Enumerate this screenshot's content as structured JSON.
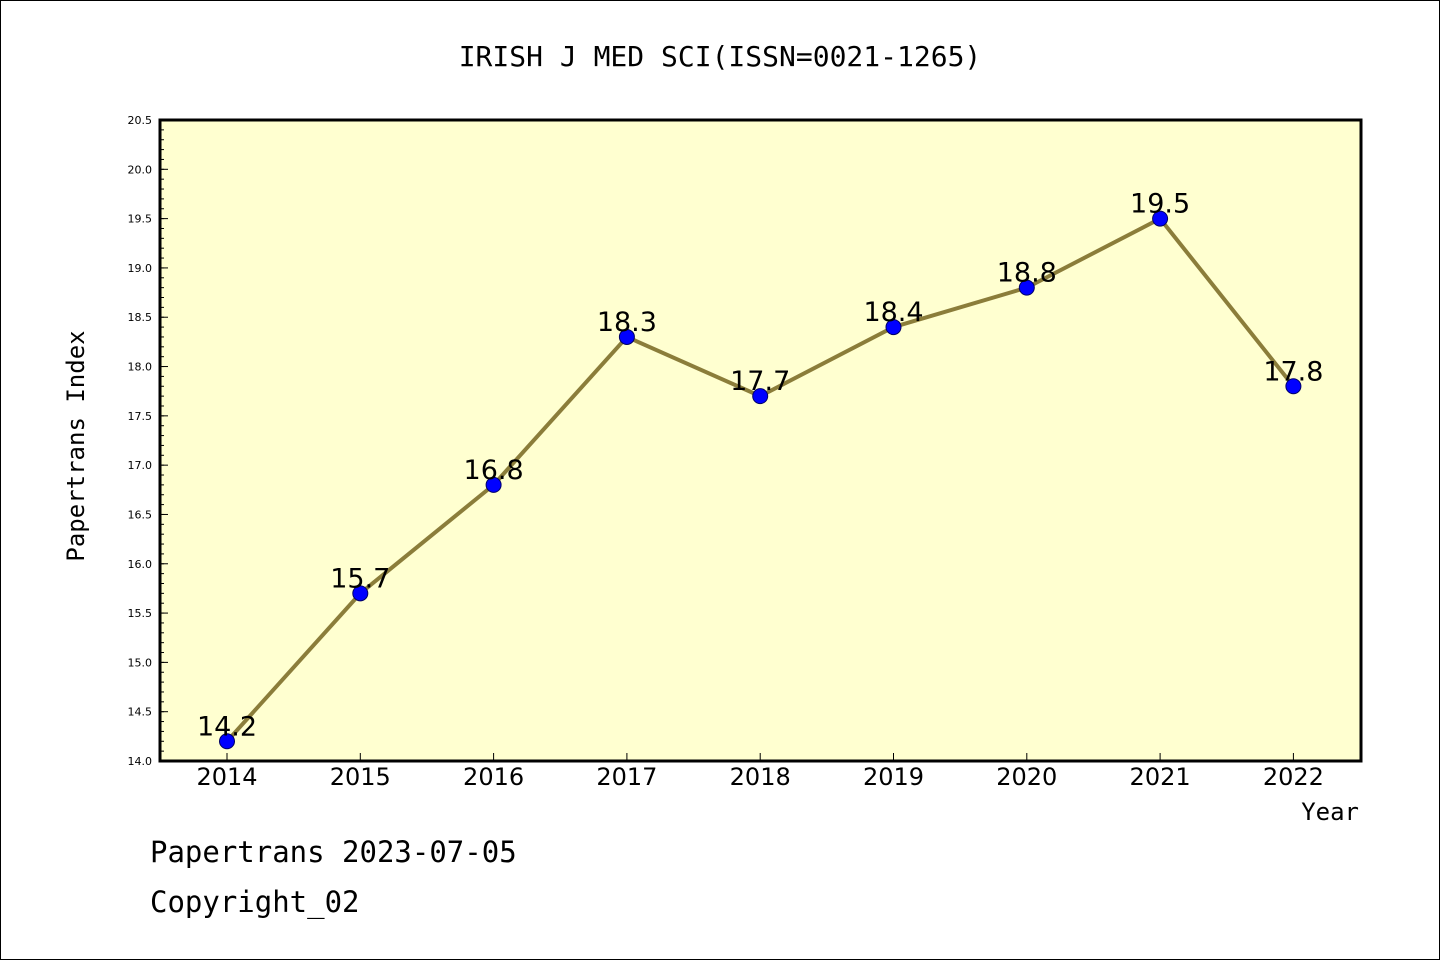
{
  "chart_data": {
    "type": "line",
    "title": "IRISH J MED SCI(ISSN=0021-1265)",
    "xlabel": "Year",
    "ylabel": "Papertrans Index",
    "categories": [
      "2014",
      "2015",
      "2016",
      "2017",
      "2018",
      "2019",
      "2020",
      "2021",
      "2022"
    ],
    "values": [
      14.2,
      15.7,
      16.8,
      18.3,
      17.7,
      18.4,
      18.8,
      19.5,
      17.8
    ],
    "value_labels": [
      "14.2",
      "15.7",
      "16.8",
      "18.3",
      "17.7",
      "18.4",
      "18.8",
      "19.5",
      "17.8"
    ],
    "ylim": [
      14.0,
      20.5
    ],
    "yticks": [
      "14.0",
      "14.5",
      "15.0",
      "15.5",
      "16.0",
      "16.5",
      "17.0",
      "17.5",
      "18.0",
      "18.5",
      "19.0",
      "19.5",
      "20.0",
      "20.5"
    ],
    "grid": false,
    "line_color": "#8b7d3a",
    "marker_color": "#0000ff",
    "plot_background": "#ffffd0"
  },
  "footer": {
    "date_line": "Papertrans 2023-07-05",
    "copyright_line": "Copyright_02"
  }
}
